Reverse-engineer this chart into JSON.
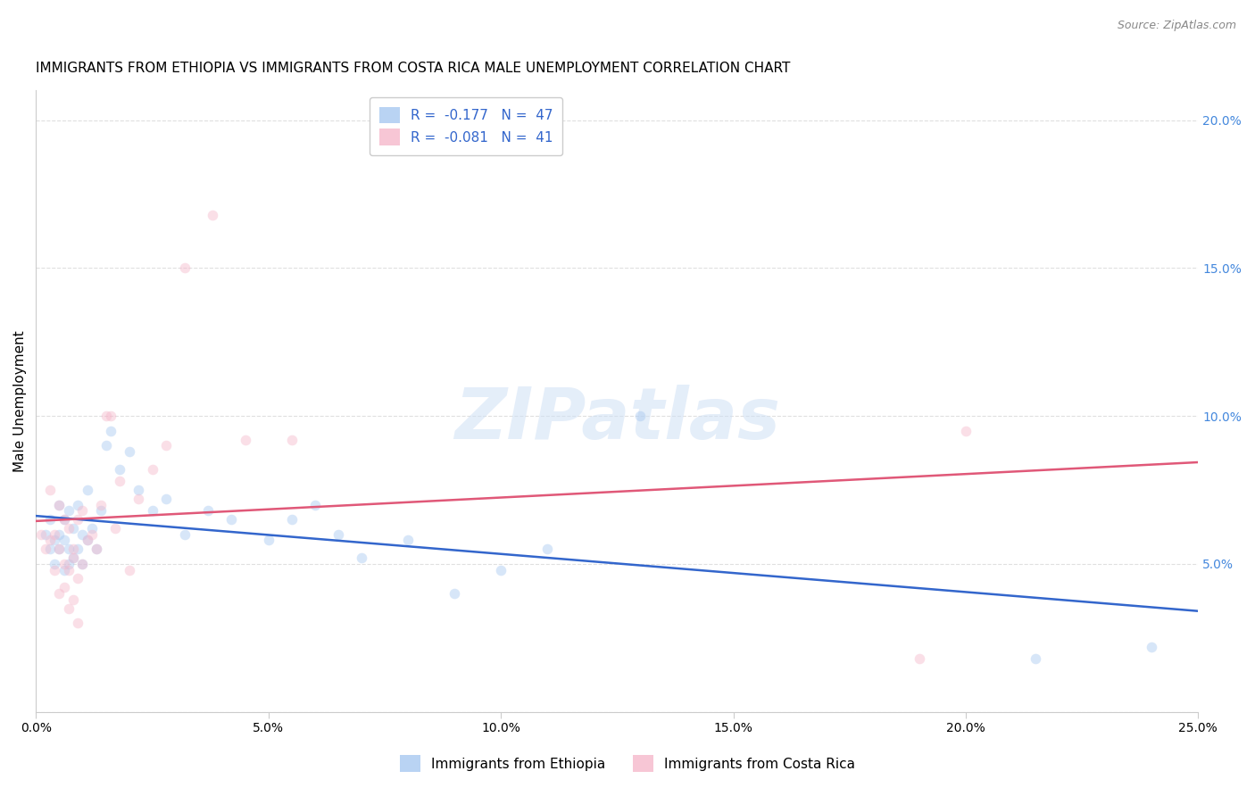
{
  "title": "IMMIGRANTS FROM ETHIOPIA VS IMMIGRANTS FROM COSTA RICA MALE UNEMPLOYMENT CORRELATION CHART",
  "source": "Source: ZipAtlas.com",
  "ylabel": "Male Unemployment",
  "xlim": [
    0.0,
    0.25
  ],
  "ylim": [
    0.0,
    0.21
  ],
  "x_ticks": [
    0.0,
    0.05,
    0.1,
    0.15,
    0.2,
    0.25
  ],
  "x_tick_labels": [
    "0.0%",
    "5.0%",
    "10.0%",
    "15.0%",
    "20.0%",
    "25.0%"
  ],
  "y_ticks": [
    0.0,
    0.05,
    0.1,
    0.15,
    0.2
  ],
  "y_tick_labels_right": [
    "",
    "5.0%",
    "10.0%",
    "15.0%",
    "20.0%"
  ],
  "watermark_text": "ZIPatlas",
  "legend_entries": [
    {
      "label": "R =  -0.177   N =  47",
      "color": "#a8c8f0"
    },
    {
      "label": "R =  -0.081   N =  41",
      "color": "#f5b8cb"
    }
  ],
  "ethiopia_color": "#a8c8f0",
  "costa_rica_color": "#f5b8cb",
  "ethiopia_line_color": "#3366cc",
  "costa_rica_line_color": "#e05878",
  "ethiopia_x": [
    0.002,
    0.003,
    0.003,
    0.004,
    0.004,
    0.005,
    0.005,
    0.005,
    0.006,
    0.006,
    0.006,
    0.007,
    0.007,
    0.007,
    0.008,
    0.008,
    0.009,
    0.009,
    0.01,
    0.01,
    0.011,
    0.011,
    0.012,
    0.013,
    0.014,
    0.015,
    0.016,
    0.018,
    0.02,
    0.022,
    0.025,
    0.028,
    0.032,
    0.037,
    0.042,
    0.05,
    0.055,
    0.06,
    0.065,
    0.07,
    0.08,
    0.09,
    0.1,
    0.11,
    0.13,
    0.215,
    0.24
  ],
  "ethiopia_y": [
    0.06,
    0.055,
    0.065,
    0.058,
    0.05,
    0.055,
    0.06,
    0.07,
    0.048,
    0.058,
    0.065,
    0.05,
    0.055,
    0.068,
    0.052,
    0.062,
    0.055,
    0.07,
    0.05,
    0.06,
    0.058,
    0.075,
    0.062,
    0.055,
    0.068,
    0.09,
    0.095,
    0.082,
    0.088,
    0.075,
    0.068,
    0.072,
    0.06,
    0.068,
    0.065,
    0.058,
    0.065,
    0.07,
    0.06,
    0.052,
    0.058,
    0.04,
    0.048,
    0.055,
    0.1,
    0.018,
    0.022
  ],
  "costa_rica_x": [
    0.001,
    0.002,
    0.003,
    0.003,
    0.004,
    0.004,
    0.005,
    0.005,
    0.006,
    0.006,
    0.007,
    0.007,
    0.008,
    0.008,
    0.009,
    0.009,
    0.01,
    0.01,
    0.011,
    0.012,
    0.013,
    0.014,
    0.015,
    0.016,
    0.017,
    0.018,
    0.02,
    0.022,
    0.025,
    0.028,
    0.032,
    0.038,
    0.045,
    0.055,
    0.19,
    0.2,
    0.005,
    0.006,
    0.007,
    0.008,
    0.009
  ],
  "costa_rica_y": [
    0.06,
    0.055,
    0.058,
    0.075,
    0.048,
    0.06,
    0.055,
    0.07,
    0.05,
    0.065,
    0.048,
    0.062,
    0.052,
    0.055,
    0.045,
    0.065,
    0.05,
    0.068,
    0.058,
    0.06,
    0.055,
    0.07,
    0.1,
    0.1,
    0.062,
    0.078,
    0.048,
    0.072,
    0.082,
    0.09,
    0.15,
    0.168,
    0.092,
    0.092,
    0.018,
    0.095,
    0.04,
    0.042,
    0.035,
    0.038,
    0.03
  ],
  "background_color": "#ffffff",
  "grid_color": "#e0e0e0",
  "title_fontsize": 11,
  "axis_label_fontsize": 11,
  "tick_fontsize": 10,
  "right_tick_color": "#4488dd",
  "marker_size": 70,
  "marker_alpha": 0.45,
  "line_width": 1.8,
  "bottom_legend_labels": [
    "Immigrants from Ethiopia",
    "Immigrants from Costa Rica"
  ]
}
